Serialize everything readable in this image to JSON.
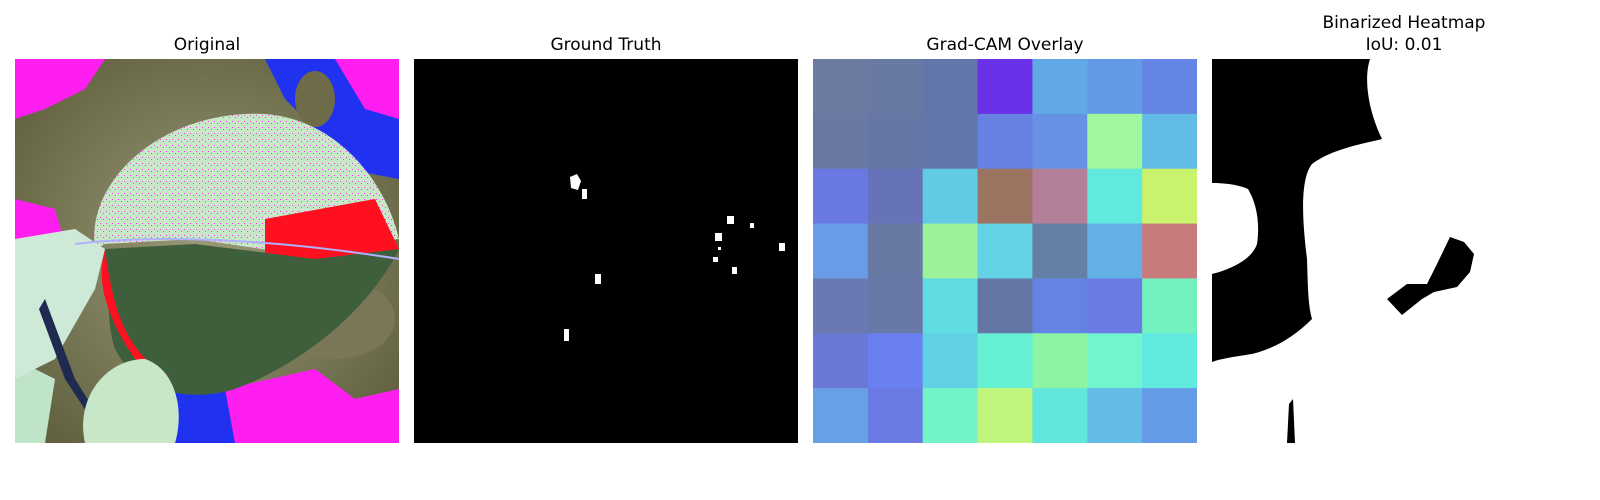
{
  "panels": {
    "original": {
      "title": "Original"
    },
    "ground_truth": {
      "title": "Ground Truth"
    },
    "gradcam": {
      "title": "Grad-CAM Overlay",
      "grid_colors": [
        [
          "#6c7aa1",
          "#6879a3",
          "#6276aa",
          "#6a32e8",
          "#61a8e6",
          "#629ae6",
          "#6385e4"
        ],
        [
          "#6a79a2",
          "#6777a5",
          "#6277aa",
          "#6781e3",
          "#6791e4",
          "#a0f79d",
          "#62bde6"
        ],
        [
          "#6a78e2",
          "#6773b8",
          "#61cbe3",
          "#9c7562",
          "#b37f99",
          "#62e9dd",
          "#c9f36c"
        ],
        [
          "#699ce6",
          "#6879a3",
          "#9cf29b",
          "#62d2e4",
          "#6580a5",
          "#63b0e6",
          "#c87a7c"
        ],
        [
          "#6a79b2",
          "#6879a7",
          "#61dce2",
          "#6476a3",
          "#6484e4",
          "#6c7ae3",
          "#72f1bf"
        ],
        [
          "#6a79d5",
          "#6a80ee",
          "#61d2e3",
          "#66f0d4",
          "#8ef3a3",
          "#72f5cf",
          "#62e9df"
        ],
        [
          "#68a0e6",
          "#6a7ae2",
          "#73f4c8",
          "#c1f47b",
          "#61e6dd",
          "#64bce6",
          "#649ae6"
        ]
      ]
    },
    "binarized": {
      "title_line1": "Binarized Heatmap",
      "title_line2": "IoU: 0.01"
    }
  },
  "colors": {
    "leaf_light": "#c8e6c8",
    "leaf_dark": "#3f5f3c",
    "magenta": "#ff1ef0",
    "blue": "#2032f0",
    "red": "#ff1020",
    "background_brown": "#6d6b48"
  }
}
